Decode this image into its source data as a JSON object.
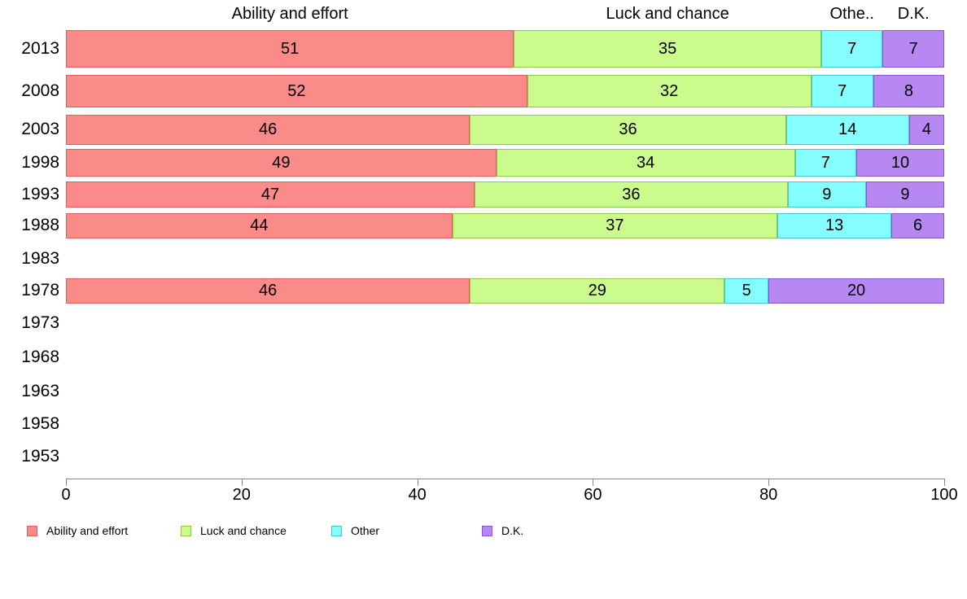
{
  "chart_data": {
    "type": "bar",
    "variant": "horizontal-stacked",
    "title": "",
    "xlabel": "",
    "ylabel": "",
    "x_axis": {
      "min": 0,
      "max": 100,
      "ticks": [
        0,
        20,
        40,
        60,
        80,
        100
      ]
    },
    "grid": false,
    "legend_position": "bottom",
    "categories": [
      "2013",
      "2008",
      "2003",
      "1998",
      "1993",
      "1988",
      "1983",
      "1978",
      "1973",
      "1968",
      "1963",
      "1958",
      "1953"
    ],
    "series": [
      {
        "name": "Ability and effort",
        "color": "#fa8b88",
        "border_color": "#e05e5e",
        "values": [
          51,
          52,
          46,
          49,
          47,
          44,
          null,
          46,
          null,
          null,
          null,
          null,
          null
        ]
      },
      {
        "name": "Luck and chance",
        "color": "#ccfb8d",
        "border_color": "#8ccb45",
        "values": [
          35,
          32,
          36,
          34,
          36,
          37,
          null,
          29,
          null,
          null,
          null,
          null,
          null
        ]
      },
      {
        "name": "Other",
        "color": "#85feff",
        "border_color": "#3fc9d1",
        "values": [
          7,
          7,
          14,
          7,
          9,
          13,
          null,
          5,
          null,
          null,
          null,
          null,
          null
        ]
      },
      {
        "name": "D.K.",
        "color": "#b888f2",
        "border_color": "#8d56cf",
        "values": [
          7,
          8,
          4,
          10,
          9,
          6,
          null,
          20,
          null,
          null,
          null,
          null,
          null
        ]
      }
    ],
    "column_headers": [
      "Ability and effort",
      "Luck and chance",
      "Othe..",
      "D.K."
    ],
    "legend": [
      "Ability and effort",
      "Luck and chance",
      "Other",
      "D.K."
    ]
  }
}
